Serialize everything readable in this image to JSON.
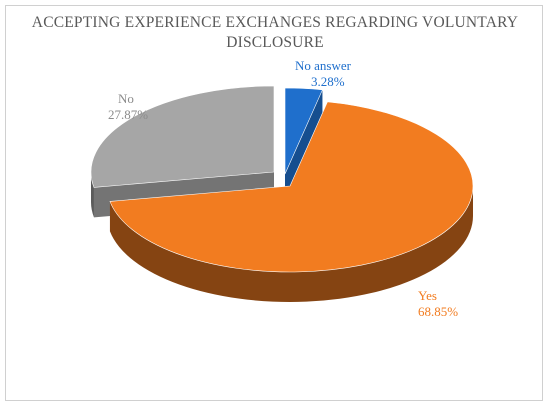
{
  "chart_data": {
    "type": "pie",
    "title_lines": [
      "ACCEPTING EXPERIENCE EXCHANGES REGARDING VOLUNTARY",
      "DISCLOSURE"
    ],
    "slices": [
      {
        "label": "No answer",
        "value": 3.28,
        "value_label": "3.28%",
        "color": "#1f6fcc"
      },
      {
        "label": "Yes",
        "value": 68.85,
        "value_label": "68.85%",
        "color": "#f27c20"
      },
      {
        "label": "No",
        "value": 27.87,
        "value_label": "27.87%",
        "color": "#a6a6a6"
      }
    ],
    "three_d": true,
    "exploded": true,
    "legend": "none"
  }
}
